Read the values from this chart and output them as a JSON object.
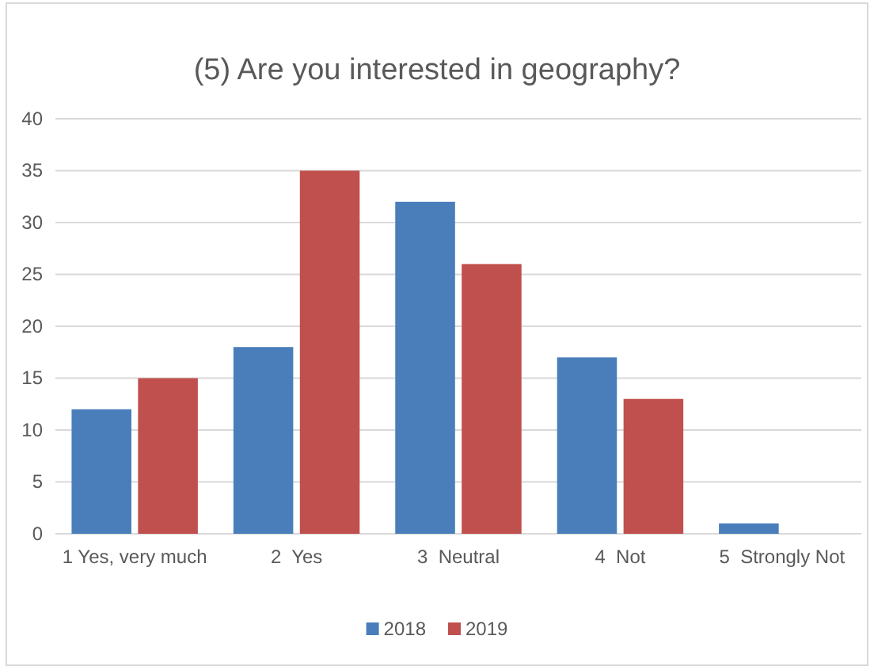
{
  "chart_data": {
    "type": "bar",
    "title": "(5) Are you interested in geography?",
    "categories": [
      "1 Yes, very much",
      "2  Yes",
      "3  Neutral",
      "4  Not",
      "5  Strongly Not"
    ],
    "series": [
      {
        "name": "2018",
        "color": "#4a7ebb",
        "values": [
          12,
          18,
          32,
          17,
          1
        ]
      },
      {
        "name": "2019",
        "color": "#c0504d",
        "values": [
          15,
          35,
          26,
          13,
          0
        ]
      }
    ],
    "ylim": [
      0,
      40
    ],
    "yticks": [
      0,
      5,
      10,
      15,
      20,
      25,
      30,
      35,
      40
    ],
    "grid": "y",
    "legend": "bottom"
  }
}
